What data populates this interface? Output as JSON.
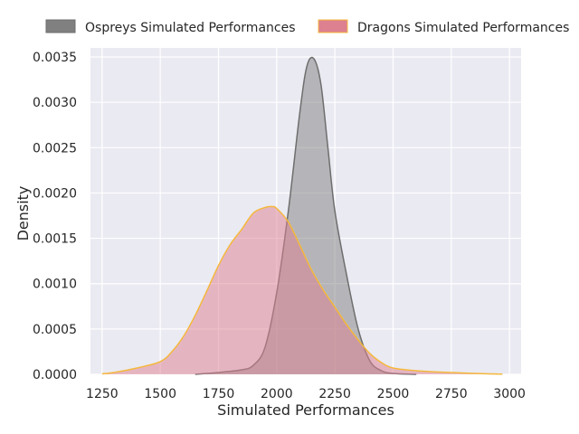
{
  "chart_data": {
    "type": "area",
    "subtype": "kde-density",
    "title": "",
    "xlabel": "Simulated Performances",
    "ylabel": "Density",
    "xlim": [
      1200,
      3050
    ],
    "ylim": [
      0,
      0.0036
    ],
    "x_ticks": [
      1250,
      1500,
      1750,
      2000,
      2250,
      2500,
      2750,
      3000
    ],
    "x_tick_labels": [
      "1250",
      "1500",
      "1750",
      "2000",
      "2250",
      "2500",
      "2750",
      "3000"
    ],
    "y_ticks": [
      0,
      0.0005,
      0.001,
      0.0015,
      0.002,
      0.0025,
      0.003,
      0.0035
    ],
    "y_tick_labels": [
      "0.0000",
      "0.0005",
      "0.0010",
      "0.0015",
      "0.0020",
      "0.0025",
      "0.0030",
      "0.0035"
    ],
    "grid": true,
    "legend_position": "top-center",
    "series": [
      {
        "name": "Ospreys Simulated Performances",
        "fill_color": "#808080",
        "line_color": "#6e6e6e",
        "x": [
          1650,
          1750,
          1850,
          1900,
          1950,
          2000,
          2050,
          2100,
          2130,
          2160,
          2190,
          2220,
          2250,
          2300,
          2350,
          2400,
          2450,
          2500,
          2600
        ],
        "y": [
          0,
          2e-05,
          5e-05,
          0.0001,
          0.0003,
          0.0009,
          0.0018,
          0.0029,
          0.0034,
          0.00348,
          0.0032,
          0.0025,
          0.0018,
          0.0011,
          0.0005,
          0.00015,
          4e-05,
          1e-05,
          0
        ]
      },
      {
        "name": "Dragons Simulated Performances",
        "fill_color": "#dd8090",
        "line_color": "#f5b83c",
        "x": [
          1250,
          1300,
          1400,
          1500,
          1550,
          1600,
          1650,
          1700,
          1750,
          1800,
          1850,
          1900,
          1950,
          1980,
          2000,
          2050,
          2100,
          2150,
          2200,
          2250,
          2300,
          2350,
          2400,
          2450,
          2500,
          2600,
          2700,
          2800,
          2900,
          2970
        ],
        "y": [
          5e-06,
          2e-05,
          7e-05,
          0.00014,
          0.00025,
          0.00042,
          0.00065,
          0.00092,
          0.0012,
          0.00143,
          0.0016,
          0.00178,
          0.00184,
          0.00185,
          0.00183,
          0.00168,
          0.00142,
          0.00115,
          0.00093,
          0.00074,
          0.00055,
          0.00038,
          0.00023,
          0.00013,
          7e-05,
          4e-05,
          2.5e-05,
          1.5e-05,
          6e-06,
          2e-06
        ]
      }
    ]
  }
}
